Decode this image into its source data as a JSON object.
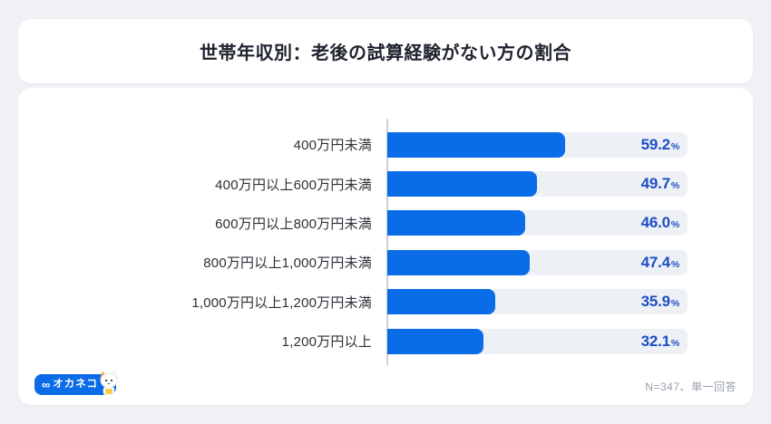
{
  "header": {
    "title": "世帯年収別：老後の試算経験がない方の割合"
  },
  "chart_data": {
    "type": "bar",
    "orientation": "horizontal",
    "title": "世帯年収別：老後の試算経験がない方の割合",
    "categories": [
      "400万円未満",
      "400万円以上600万円未満",
      "600万円以上800万円未満",
      "800万円以上1,000万円未満",
      "1,000万円以上1,200万円未満",
      "1,200万円以上"
    ],
    "values": [
      59.2,
      49.7,
      46.0,
      47.4,
      35.9,
      32.1
    ],
    "unit": "%",
    "xlim": [
      0,
      100
    ],
    "value_decimals": 1,
    "grid": false,
    "legend": false
  },
  "footer": {
    "logo_mark": "∞",
    "logo_name": "オカネコ",
    "note": "N=347、単一回答"
  },
  "colors": {
    "page_bg": "#eff1f4",
    "bar": "#0b6ce8",
    "track": "#edf0f5",
    "value_text": "#1c4fc4",
    "logo_bg": "#0c6ce8",
    "axis_line": "#ccd1d8"
  }
}
